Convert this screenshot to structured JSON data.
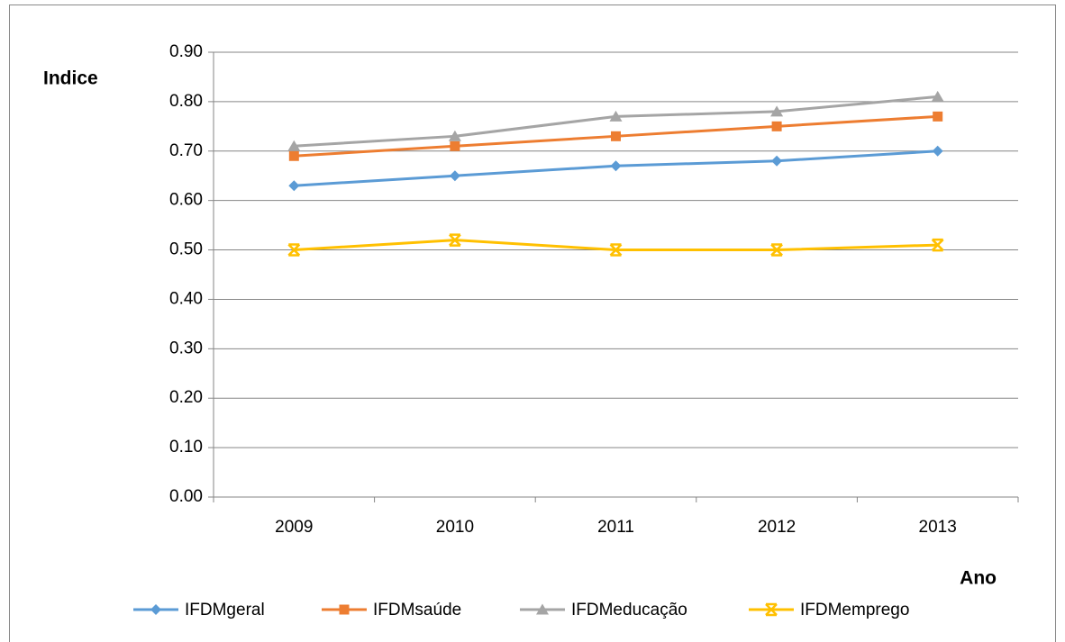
{
  "chart_data": {
    "type": "line",
    "y_label": "Indice",
    "x_label": "Ano",
    "categories": [
      "2009",
      "2010",
      "2011",
      "2012",
      "2013"
    ],
    "series": [
      {
        "name": "IFDMgeral",
        "color": "#5b9bd5",
        "marker": "diamond",
        "values": [
          0.63,
          0.65,
          0.67,
          0.68,
          0.7
        ]
      },
      {
        "name": "IFDMsaúde",
        "color": "#ed7d31",
        "marker": "square",
        "values": [
          0.69,
          0.71,
          0.73,
          0.75,
          0.77
        ]
      },
      {
        "name": "IFDMeducação",
        "color": "#a5a5a5",
        "marker": "triangle",
        "values": [
          0.71,
          0.73,
          0.77,
          0.78,
          0.81
        ]
      },
      {
        "name": "IFDMemprego",
        "color": "#ffc000",
        "marker": "star",
        "values": [
          0.5,
          0.52,
          0.5,
          0.5,
          0.51
        ]
      }
    ],
    "ylim": [
      0,
      0.9
    ],
    "yticks": [
      {
        "value": 0,
        "label": "0.00"
      },
      {
        "value": 0.1,
        "label": "0.10"
      },
      {
        "value": 0.2,
        "label": "0.20"
      },
      {
        "value": 0.3,
        "label": "0.30"
      },
      {
        "value": 0.4,
        "label": "0.40"
      },
      {
        "value": 0.5,
        "label": "0.50"
      },
      {
        "value": 0.6,
        "label": "0.60"
      },
      {
        "value": 0.7,
        "label": "0.70"
      },
      {
        "value": 0.8,
        "label": "0.80"
      },
      {
        "value": 0.9,
        "label": "0.90"
      }
    ],
    "grid": true,
    "legend": "bottom"
  }
}
